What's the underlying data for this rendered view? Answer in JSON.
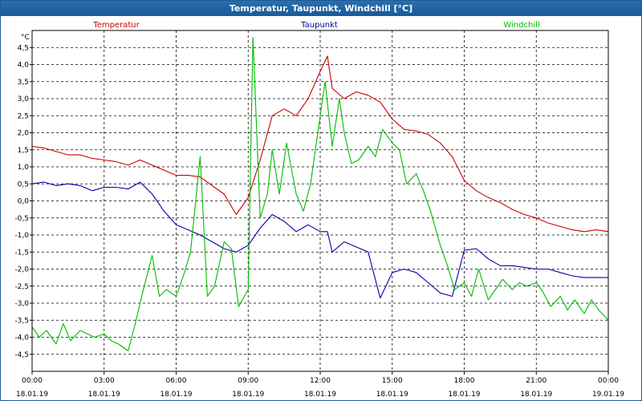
{
  "window": {
    "title": "Temperatur, Taupunkt, Windchill [°C]"
  },
  "chart_data": {
    "type": "line",
    "title": "Temperatur, Taupunkt, Windchill [°C]",
    "ylabel": "°C",
    "xlabel": "",
    "ylim": [
      -5,
      5
    ],
    "xlim": [
      0,
      24
    ],
    "grid": true,
    "legend_position": "top",
    "y_ticks": [
      "4,5",
      "4,0",
      "3,5",
      "3,0",
      "2,5",
      "2,0",
      "1,5",
      "1,0",
      "0,5",
      "0,0",
      "-0,5",
      "-1,0",
      "-1,5",
      "-2,0",
      "-2,5",
      "-3,0",
      "-3,5",
      "-4,0",
      "-4,5"
    ],
    "x_ticks": [
      {
        "time": "00:00",
        "date": "18.01.19"
      },
      {
        "time": "03:00",
        "date": "18.01.19"
      },
      {
        "time": "06:00",
        "date": "18.01.19"
      },
      {
        "time": "09:00",
        "date": "18.01.19"
      },
      {
        "time": "12:00",
        "date": "18.01.19"
      },
      {
        "time": "15:00",
        "date": "18.01.19"
      },
      {
        "time": "18:00",
        "date": "18.01.19"
      },
      {
        "time": "21:00",
        "date": "18.01.19"
      },
      {
        "time": "00:00",
        "date": "19.01.19"
      }
    ],
    "series": [
      {
        "name": "Temperatur",
        "color": "#cc0000",
        "x": [
          0,
          0.5,
          1,
          1.5,
          2,
          2.5,
          3,
          3.5,
          4,
          4.5,
          5,
          5.5,
          6,
          6.5,
          7,
          7.5,
          8,
          8.5,
          9,
          9.5,
          10,
          10.5,
          11,
          11.5,
          12,
          12.3,
          12.5,
          13,
          13.5,
          14,
          14.5,
          15,
          15.5,
          16,
          16.5,
          17,
          17.5,
          18,
          18.5,
          19,
          19.5,
          20,
          20.5,
          21,
          21.5,
          22,
          22.5,
          23,
          23.5,
          24
        ],
        "y": [
          1.6,
          1.55,
          1.45,
          1.35,
          1.35,
          1.25,
          1.2,
          1.15,
          1.05,
          1.2,
          1.05,
          0.9,
          0.75,
          0.75,
          0.7,
          0.45,
          0.2,
          -0.4,
          0.1,
          1.2,
          2.5,
          2.7,
          2.5,
          3.0,
          3.8,
          4.25,
          3.3,
          3.0,
          3.2,
          3.1,
          2.9,
          2.4,
          2.1,
          2.05,
          1.95,
          1.7,
          1.3,
          0.6,
          0.3,
          0.1,
          -0.05,
          -0.25,
          -0.4,
          -0.5,
          -0.65,
          -0.75,
          -0.85,
          -0.9,
          -0.85,
          -0.9
        ]
      },
      {
        "name": "Taupunkt",
        "color": "#0000aa",
        "x": [
          0,
          0.5,
          1,
          1.5,
          2,
          2.5,
          3,
          3.5,
          4,
          4.5,
          5,
          5.5,
          6,
          6.5,
          7,
          7.5,
          8,
          8.5,
          9,
          9.5,
          10,
          10.5,
          11,
          11.5,
          12,
          12.3,
          12.5,
          13,
          13.5,
          14,
          14.5,
          15,
          15.5,
          16,
          16.5,
          17,
          17.5,
          18,
          18.5,
          19,
          19.5,
          20,
          20.5,
          21,
          21.5,
          22,
          22.5,
          23,
          23.5,
          24
        ],
        "y": [
          0.5,
          0.55,
          0.45,
          0.5,
          0.45,
          0.3,
          0.4,
          0.4,
          0.35,
          0.55,
          0.2,
          -0.3,
          -0.7,
          -0.85,
          -1.0,
          -1.2,
          -1.4,
          -1.5,
          -1.3,
          -0.8,
          -0.4,
          -0.6,
          -0.9,
          -0.7,
          -0.9,
          -0.9,
          -1.5,
          -1.2,
          -1.35,
          -1.5,
          -2.85,
          -2.1,
          -2.0,
          -2.1,
          -2.4,
          -2.7,
          -2.8,
          -1.45,
          -1.4,
          -1.7,
          -1.9,
          -1.9,
          -1.95,
          -2.0,
          -2.0,
          -2.1,
          -2.2,
          -2.25,
          -2.25,
          -2.25
        ]
      },
      {
        "name": "Windchill",
        "color": "#00bb00",
        "x": [
          0,
          0.3,
          0.6,
          1,
          1.3,
          1.6,
          2,
          2.3,
          2.6,
          3,
          3.3,
          3.6,
          4,
          4.3,
          4.6,
          5,
          5.3,
          5.6,
          6,
          6.3,
          6.6,
          7,
          7.3,
          7.6,
          8,
          8.3,
          8.6,
          9,
          9.2,
          9.5,
          9.8,
          10,
          10.3,
          10.6,
          11,
          11.3,
          11.6,
          12,
          12.2,
          12.5,
          12.8,
          13,
          13.3,
          13.6,
          14,
          14.3,
          14.6,
          15,
          15.3,
          15.6,
          16,
          16.3,
          16.6,
          17,
          17.3,
          17.6,
          18,
          18.3,
          18.6,
          19,
          19.3,
          19.6,
          20,
          20.3,
          20.6,
          21,
          21.3,
          21.6,
          22,
          22.3,
          22.6,
          23,
          23.3,
          23.6,
          24
        ],
        "y": [
          -3.7,
          -4.0,
          -3.8,
          -4.2,
          -3.6,
          -4.1,
          -3.8,
          -3.9,
          -4.0,
          -3.9,
          -4.1,
          -4.2,
          -4.4,
          -3.6,
          -2.7,
          -1.6,
          -2.8,
          -2.6,
          -2.8,
          -2.2,
          -1.5,
          1.3,
          -2.8,
          -2.5,
          -1.2,
          -1.4,
          -3.1,
          -2.6,
          4.8,
          -0.5,
          0.2,
          1.5,
          0.2,
          1.7,
          0.2,
          -0.3,
          0.5,
          2.5,
          3.5,
          1.6,
          3.0,
          2.0,
          1.1,
          1.2,
          1.6,
          1.3,
          2.1,
          1.7,
          1.5,
          0.5,
          0.8,
          0.3,
          -0.3,
          -1.3,
          -1.9,
          -2.6,
          -2.4,
          -2.8,
          -2.0,
          -2.9,
          -2.6,
          -2.3,
          -2.6,
          -2.4,
          -2.5,
          -2.4,
          -2.7,
          -3.1,
          -2.8,
          -3.2,
          -2.9,
          -3.3,
          -2.9,
          -3.2,
          -3.5
        ]
      }
    ]
  }
}
